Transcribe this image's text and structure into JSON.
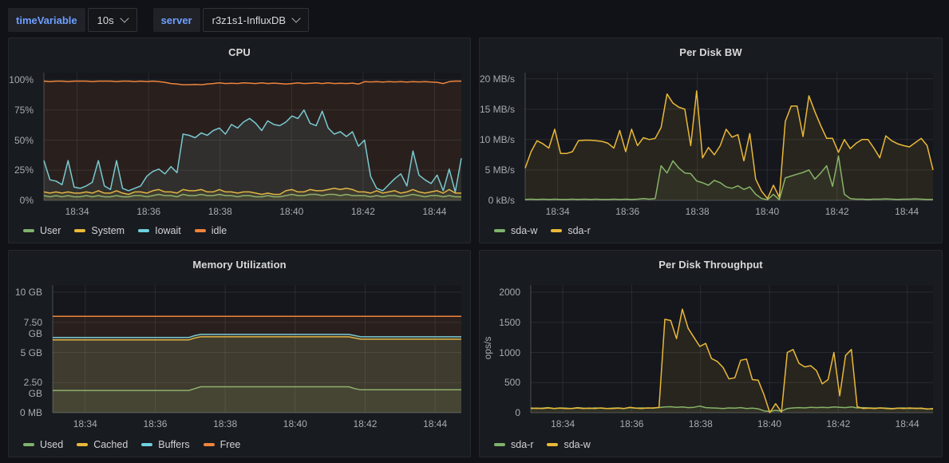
{
  "variables": [
    {
      "label": "timeVariable",
      "value": "10s"
    },
    {
      "label": "server",
      "value": "r3z1s1-InfluxDB"
    }
  ],
  "colors": {
    "green": "#7EB26D",
    "yellow": "#EAB839",
    "blue": "#6ED0E0",
    "orange": "#EF843C",
    "panel_bg": "#181b1f",
    "page_bg": "#111217",
    "grid": "rgba(204,204,220,0.11)",
    "axis_line": "rgba(204,204,220,0.28)",
    "tick_text": "#a7abb2",
    "title_text": "#d8d9da",
    "variable_label": "#6e9fff"
  },
  "time_axis": {
    "labels": [
      "18:34",
      "18:36",
      "18:38",
      "18:40",
      "18:42",
      "18:44"
    ],
    "fracs": [
      0.0796,
      0.2509,
      0.4221,
      0.5934,
      0.7646,
      0.9358
    ]
  },
  "chart_data": [
    {
      "type": "line",
      "title": "CPU",
      "ylabel": "",
      "ylim": [
        0,
        106
      ],
      "grid": true,
      "legend_position": "bottom-left",
      "y_ticks": {
        "values": [
          0,
          25,
          50,
          75,
          100
        ],
        "labels": [
          "0%",
          "25%",
          "50%",
          "75%",
          "100%"
        ]
      },
      "x_range": [
        "18:33",
        "18:45"
      ],
      "layout": {
        "axis_w": 36
      },
      "series": [
        {
          "name": "User",
          "color": "#7EB26D",
          "values": [
            4,
            3,
            4,
            3,
            4,
            3,
            3,
            4,
            3,
            4,
            3,
            3,
            4,
            3,
            3,
            4,
            4,
            3,
            4,
            5,
            4,
            4,
            3,
            5,
            4,
            4,
            5,
            4,
            4,
            5,
            4,
            4,
            3,
            4,
            4,
            3,
            3,
            4,
            3,
            3,
            4,
            5,
            4,
            4,
            5,
            5,
            4,
            5,
            5,
            4,
            5,
            4,
            4,
            4,
            3,
            4,
            3,
            4,
            4,
            3,
            4,
            5,
            4,
            3,
            4,
            4,
            3,
            4,
            3,
            3
          ]
        },
        {
          "name": "System",
          "color": "#EAB839",
          "values": [
            7,
            6,
            7,
            6,
            7,
            6,
            6,
            7,
            6,
            8,
            6,
            6,
            8,
            6,
            5,
            7,
            7,
            6,
            8,
            9,
            7,
            7,
            6,
            9,
            8,
            8,
            9,
            7,
            7,
            9,
            7,
            7,
            6,
            7,
            7,
            6,
            5,
            6,
            5,
            5,
            8,
            9,
            7,
            7,
            9,
            8,
            8,
            9,
            10,
            9,
            10,
            9,
            7,
            7,
            6,
            8,
            6,
            7,
            8,
            6,
            7,
            9,
            7,
            6,
            7,
            8,
            6,
            9,
            6,
            6
          ]
        },
        {
          "name": "Iowait",
          "color": "#6ED0E0",
          "values": [
            33,
            17,
            16,
            13,
            33,
            11,
            10,
            12,
            15,
            33,
            12,
            9,
            33,
            10,
            8,
            10,
            12,
            20,
            24,
            26,
            22,
            28,
            23,
            55,
            54,
            52,
            56,
            54,
            58,
            60,
            55,
            63,
            60,
            65,
            68,
            64,
            58,
            66,
            63,
            62,
            65,
            70,
            68,
            75,
            64,
            62,
            74,
            60,
            55,
            57,
            53,
            57,
            45,
            50,
            20,
            10,
            8,
            13,
            18,
            22,
            12,
            41,
            21,
            17,
            14,
            21,
            8,
            26,
            7,
            35
          ]
        },
        {
          "name": "idle",
          "color": "#EF843C",
          "values": [
            99,
            98.5,
            99,
            99,
            98.5,
            99,
            99,
            99,
            98.5,
            99,
            99,
            99,
            98.5,
            99,
            99,
            98.5,
            99,
            98.5,
            99,
            98.5,
            98,
            97,
            96.5,
            96,
            96,
            96.2,
            96,
            96.5,
            97,
            97.5,
            97,
            97.2,
            97,
            97.5,
            97.3,
            97,
            97.5,
            97,
            97.3,
            97,
            96.5,
            97,
            97.5,
            97,
            97.2,
            97.5,
            97,
            97.5,
            97,
            97.2,
            97,
            97.3,
            96.5,
            98.5,
            98.3,
            98.5,
            98.2,
            98.5,
            98.3,
            98.5,
            98.2,
            98.5,
            98.3,
            98.5,
            98.2,
            98,
            97,
            98.5,
            99,
            99
          ]
        }
      ]
    },
    {
      "type": "line",
      "title": "Per Disk BW",
      "ylabel": "",
      "ylim": [
        0,
        21
      ],
      "grid": true,
      "legend_position": "bottom-left",
      "y_ticks": {
        "values": [
          0,
          5,
          10,
          15,
          20
        ],
        "labels": [
          "0 kB/s",
          "5 MB/s",
          "10 MB/s",
          "15 MB/s",
          "20 MB/s"
        ]
      },
      "x_range": [
        "18:33",
        "18:45"
      ],
      "layout": {
        "axis_w": 49
      },
      "series": [
        {
          "name": "sda-w",
          "color": "#7EB26D",
          "values": [
            0.15,
            0.2,
            0.15,
            0.2,
            0.15,
            0.2,
            0.15,
            0.15,
            0.2,
            0.15,
            0.2,
            0.15,
            0.2,
            0.15,
            0.15,
            0.2,
            0.15,
            0.2,
            0.15,
            0.2,
            0.3,
            0.2,
            0.3,
            5.7,
            4.5,
            6.5,
            5.3,
            4.5,
            4.4,
            3.2,
            2.9,
            2.5,
            3.3,
            2.9,
            2.2,
            2.0,
            2.4,
            1.8,
            2.2,
            1.0,
            0.3,
            0.1,
            1.0,
            0.1,
            3.7,
            4.0,
            4.3,
            4.6,
            5.0,
            3.5,
            4.5,
            5.7,
            2.3,
            7.3,
            1.0,
            0.3,
            0.2,
            0.2,
            0.15,
            0.2,
            0.2,
            0.25,
            0.2,
            0.15,
            0.2,
            0.2,
            0.25,
            0.2,
            0.15,
            0.15
          ]
        },
        {
          "name": "sda-r",
          "color": "#EAB839",
          "values": [
            5.3,
            8.0,
            9.8,
            9.3,
            8.6,
            11.7,
            7.7,
            7.7,
            8.0,
            9.8,
            9.9,
            9.9,
            9.8,
            9.7,
            9.4,
            8.6,
            11.5,
            8.0,
            11.7,
            9.0,
            10.3,
            10.0,
            10.2,
            12.0,
            17.5,
            16.0,
            15.3,
            15.0,
            9.0,
            18.0,
            7.0,
            8.7,
            7.5,
            9.0,
            11.7,
            10.4,
            10.8,
            6.5,
            11.0,
            3.5,
            1.5,
            0.3,
            2.5,
            0.5,
            13.0,
            15.5,
            15.5,
            10.5,
            17.2,
            14.6,
            12.3,
            10.2,
            10.2,
            7.9,
            10.0,
            8.5,
            9.4,
            10.0,
            10.0,
            8.6,
            7.0,
            10.6,
            9.8,
            9.3,
            9.0,
            8.8,
            9.5,
            10.2,
            9.0,
            5.0
          ]
        }
      ]
    },
    {
      "type": "line",
      "title": "Memory Utilization",
      "ylabel": "",
      "ylim": [
        0,
        10.6
      ],
      "grid": true,
      "legend_position": "bottom-left",
      "y_ticks": {
        "values": [
          0,
          2.5,
          5,
          7.5,
          10
        ],
        "labels": [
          "0 MB",
          "2.50 GB",
          "5 GB",
          "7.50 GB",
          "10 GB"
        ]
      },
      "x_range": [
        "18:33",
        "18:45"
      ],
      "layout": {
        "axis_w": 47
      },
      "series": [
        {
          "name": "Used",
          "color": "#7EB26D",
          "values": [
            1.85,
            1.85,
            1.85,
            1.85,
            1.85,
            1.85,
            1.85,
            1.85,
            1.85,
            1.85,
            1.85,
            1.85,
            1.85,
            1.85,
            1.85,
            1.85,
            1.85,
            1.85,
            1.85,
            1.85,
            1.85,
            1.85,
            1.85,
            1.85,
            2.0,
            2.15,
            2.15,
            2.15,
            2.15,
            2.15,
            2.15,
            2.15,
            2.15,
            2.15,
            2.15,
            2.15,
            2.15,
            2.15,
            2.15,
            2.15,
            2.15,
            2.15,
            2.15,
            2.15,
            2.15,
            2.15,
            2.15,
            2.15,
            2.15,
            2.15,
            2.15,
            2.0,
            1.9,
            1.9,
            1.9,
            1.9,
            1.9,
            1.9,
            1.9,
            1.9,
            1.9,
            1.9,
            1.9,
            1.9,
            1.9,
            1.9,
            1.9,
            1.9,
            1.9,
            1.9
          ]
        },
        {
          "name": "Cached",
          "color": "#EAB839",
          "values": [
            6.05,
            6.05,
            6.05,
            6.05,
            6.05,
            6.05,
            6.05,
            6.05,
            6.05,
            6.05,
            6.05,
            6.05,
            6.05,
            6.05,
            6.05,
            6.05,
            6.05,
            6.05,
            6.05,
            6.05,
            6.05,
            6.05,
            6.05,
            6.05,
            6.2,
            6.3,
            6.3,
            6.3,
            6.3,
            6.3,
            6.3,
            6.3,
            6.3,
            6.3,
            6.3,
            6.3,
            6.3,
            6.3,
            6.3,
            6.3,
            6.3,
            6.3,
            6.3,
            6.3,
            6.3,
            6.3,
            6.3,
            6.3,
            6.3,
            6.3,
            6.3,
            6.2,
            6.1,
            6.1,
            6.1,
            6.1,
            6.1,
            6.1,
            6.1,
            6.1,
            6.1,
            6.1,
            6.1,
            6.1,
            6.1,
            6.1,
            6.1,
            6.1,
            6.1,
            6.1
          ]
        },
        {
          "name": "Buffers",
          "color": "#6ED0E0",
          "values": [
            6.25,
            6.25,
            6.25,
            6.25,
            6.25,
            6.25,
            6.25,
            6.25,
            6.25,
            6.25,
            6.25,
            6.25,
            6.25,
            6.25,
            6.25,
            6.25,
            6.25,
            6.25,
            6.25,
            6.25,
            6.25,
            6.25,
            6.25,
            6.25,
            6.4,
            6.5,
            6.5,
            6.5,
            6.5,
            6.5,
            6.5,
            6.5,
            6.5,
            6.5,
            6.5,
            6.5,
            6.5,
            6.5,
            6.5,
            6.5,
            6.5,
            6.5,
            6.5,
            6.5,
            6.5,
            6.5,
            6.5,
            6.5,
            6.5,
            6.5,
            6.5,
            6.4,
            6.3,
            6.3,
            6.3,
            6.3,
            6.3,
            6.3,
            6.3,
            6.3,
            6.3,
            6.3,
            6.3,
            6.3,
            6.3,
            6.3,
            6.3,
            6.3,
            6.3,
            6.3
          ]
        },
        {
          "name": "Free",
          "color": "#EF843C",
          "values": [
            8.0,
            8.0,
            8.0,
            8.0,
            8.0,
            8.0,
            8.0,
            8.0,
            8.0,
            8.0,
            8.0,
            8.0,
            8.0,
            8.0,
            8.0,
            8.0,
            8.0,
            8.0,
            8.0,
            8.0,
            8.0,
            8.0,
            8.0,
            8.0,
            8.0,
            8.0,
            8.0,
            8.0,
            8.0,
            8.0,
            8.0,
            8.0,
            8.0,
            8.0,
            8.0,
            8.0,
            8.0,
            8.0,
            8.0,
            8.0,
            8.0,
            8.0,
            8.0,
            8.0,
            8.0,
            8.0,
            8.0,
            8.0,
            8.0,
            8.0,
            8.0,
            8.0,
            8.0,
            8.0,
            8.0,
            8.0,
            8.0,
            8.0,
            8.0,
            8.0,
            8.0,
            8.0,
            8.0,
            8.0,
            8.0,
            8.0,
            8.0,
            8.0,
            8.0,
            8.0
          ]
        }
      ]
    },
    {
      "type": "line",
      "title": "Per Disk Throughput",
      "ylabel": "ops/s",
      "ylim": [
        0,
        2120
      ],
      "grid": true,
      "legend_position": "bottom-left",
      "y_ticks": {
        "values": [
          0,
          500,
          1000,
          1500,
          2000
        ],
        "labels": [
          "0",
          "500",
          "1000",
          "1500",
          "2000"
        ]
      },
      "x_range": [
        "18:33",
        "18:45"
      ],
      "layout": {
        "axis_w": 56
      },
      "series": [
        {
          "name": "sda-r",
          "color": "#7EB26D",
          "values": [
            80,
            70,
            75,
            85,
            70,
            80,
            75,
            70,
            85,
            75,
            70,
            80,
            75,
            70,
            75,
            80,
            70,
            85,
            75,
            80,
            75,
            80,
            85,
            95,
            100,
            90,
            95,
            85,
            90,
            110,
            85,
            80,
            75,
            70,
            80,
            75,
            85,
            70,
            75,
            65,
            30,
            20,
            40,
            25,
            70,
            80,
            85,
            80,
            90,
            85,
            90,
            85,
            95,
            90,
            85,
            95,
            80,
            85,
            80,
            75,
            80,
            75,
            70,
            75,
            80,
            70,
            75,
            70,
            65,
            60
          ]
        },
        {
          "name": "sda-w",
          "color": "#EAB839",
          "values": [
            70,
            75,
            70,
            80,
            70,
            75,
            70,
            70,
            80,
            70,
            75,
            70,
            80,
            70,
            70,
            75,
            70,
            90,
            75,
            70,
            80,
            75,
            90,
            1550,
            1530,
            1230,
            1720,
            1400,
            1250,
            1100,
            1150,
            900,
            850,
            750,
            560,
            580,
            870,
            890,
            550,
            540,
            300,
            0,
            150,
            10,
            1000,
            1050,
            820,
            760,
            780,
            700,
            480,
            550,
            1000,
            280,
            950,
            1050,
            100,
            70,
            75,
            70,
            80,
            70,
            65,
            75,
            70,
            80,
            70,
            75,
            60,
            70
          ]
        }
      ]
    }
  ]
}
